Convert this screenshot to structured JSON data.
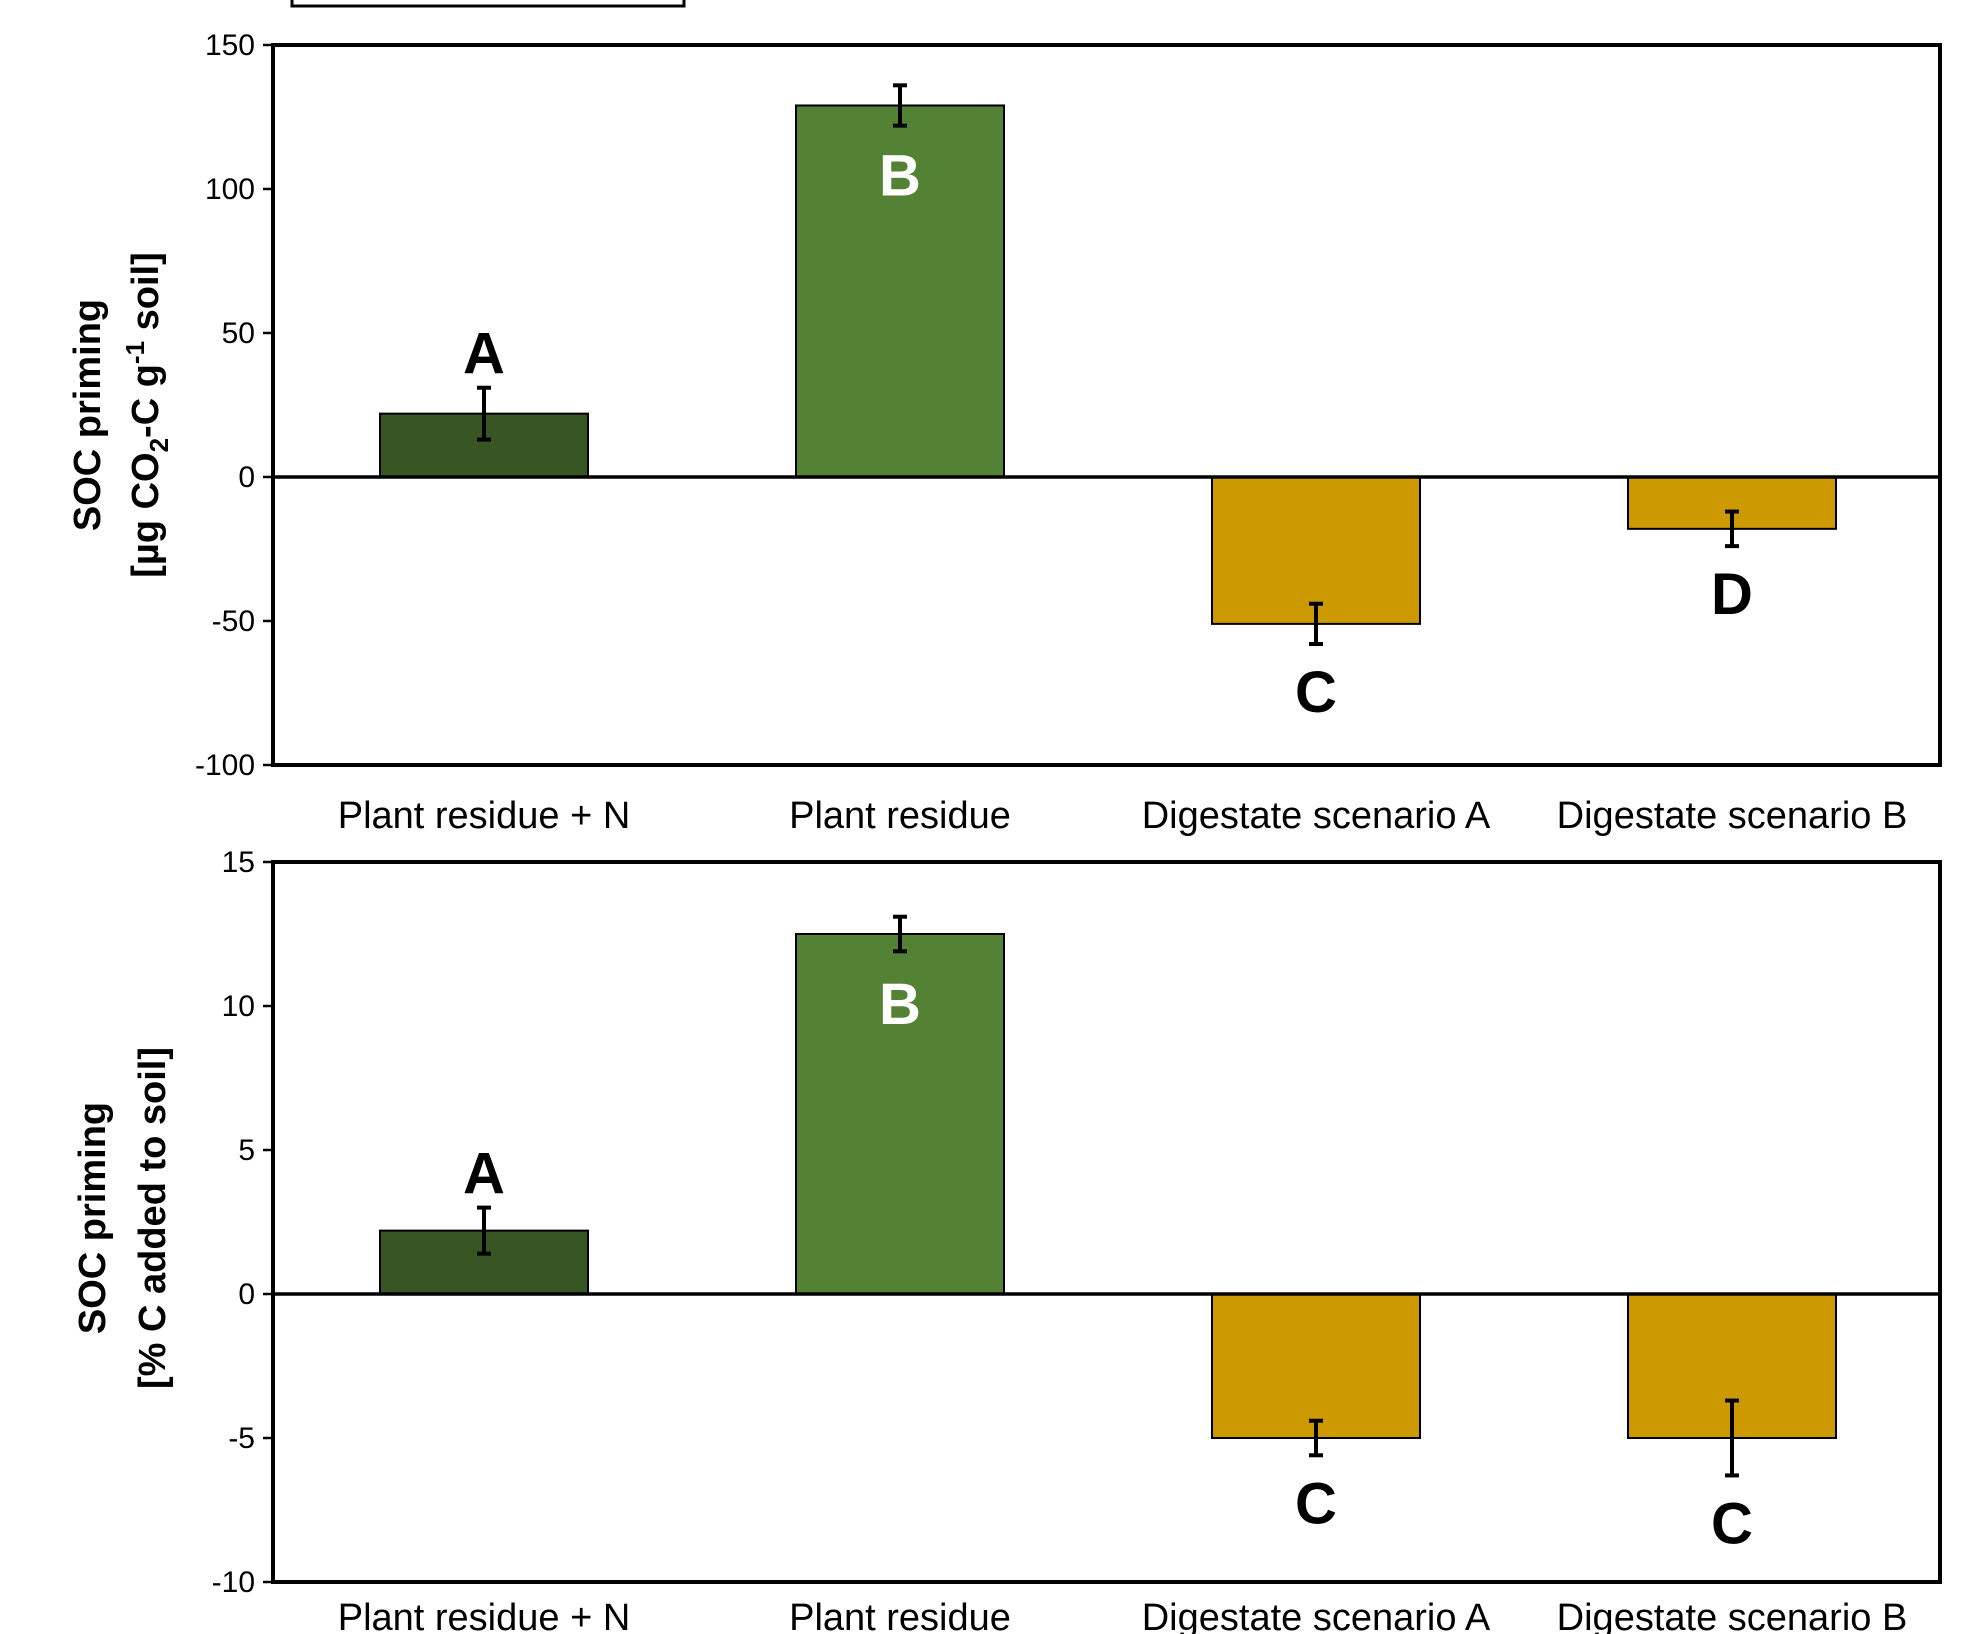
{
  "chart_data": [
    {
      "type": "bar",
      "categories": [
        "Plant residue + N",
        "Plant residue",
        "Digestate scenario A",
        "Digestate scenario B"
      ],
      "values": [
        22,
        129,
        -51,
        -18
      ],
      "error": [
        9,
        7,
        7,
        6
      ],
      "significance_letters": [
        "A",
        "B",
        "C",
        "D"
      ],
      "ylabel_line1": "SOC priming",
      "ylabel_line2": {
        "a": "[µg CO",
        "sub": "2",
        "b": "-C g",
        "sup": "-1",
        "c": " soil]"
      },
      "ylim": [
        -100,
        150
      ],
      "yticks": [
        -100,
        -50,
        0,
        50,
        100,
        150
      ],
      "colors": [
        "#375623",
        "#548235",
        "#CC9900",
        "#CC9900"
      ],
      "letter_colors": [
        "#000000",
        "#ffffff",
        "#000000",
        "#000000"
      ],
      "grid": false
    },
    {
      "type": "bar",
      "categories": [
        "Plant residue + N",
        "Plant residue",
        "Digestate scenario A",
        "Digestate scenario B"
      ],
      "values": [
        2.2,
        12.5,
        -5,
        -5
      ],
      "error": [
        0.8,
        0.6,
        0.6,
        1.3
      ],
      "significance_letters": [
        "A",
        "B",
        "C",
        "C"
      ],
      "ylabel_line1": "SOC priming",
      "ylabel_line2": "[% C added to soil]",
      "ylim": [
        -10,
        15
      ],
      "yticks": [
        -10,
        -5,
        0,
        5,
        10,
        15
      ],
      "colors": [
        "#375623",
        "#548235",
        "#CC9900",
        "#CC9900"
      ],
      "letter_colors": [
        "#000000",
        "#ffffff",
        "#000000",
        "#000000"
      ],
      "grid": false
    }
  ]
}
